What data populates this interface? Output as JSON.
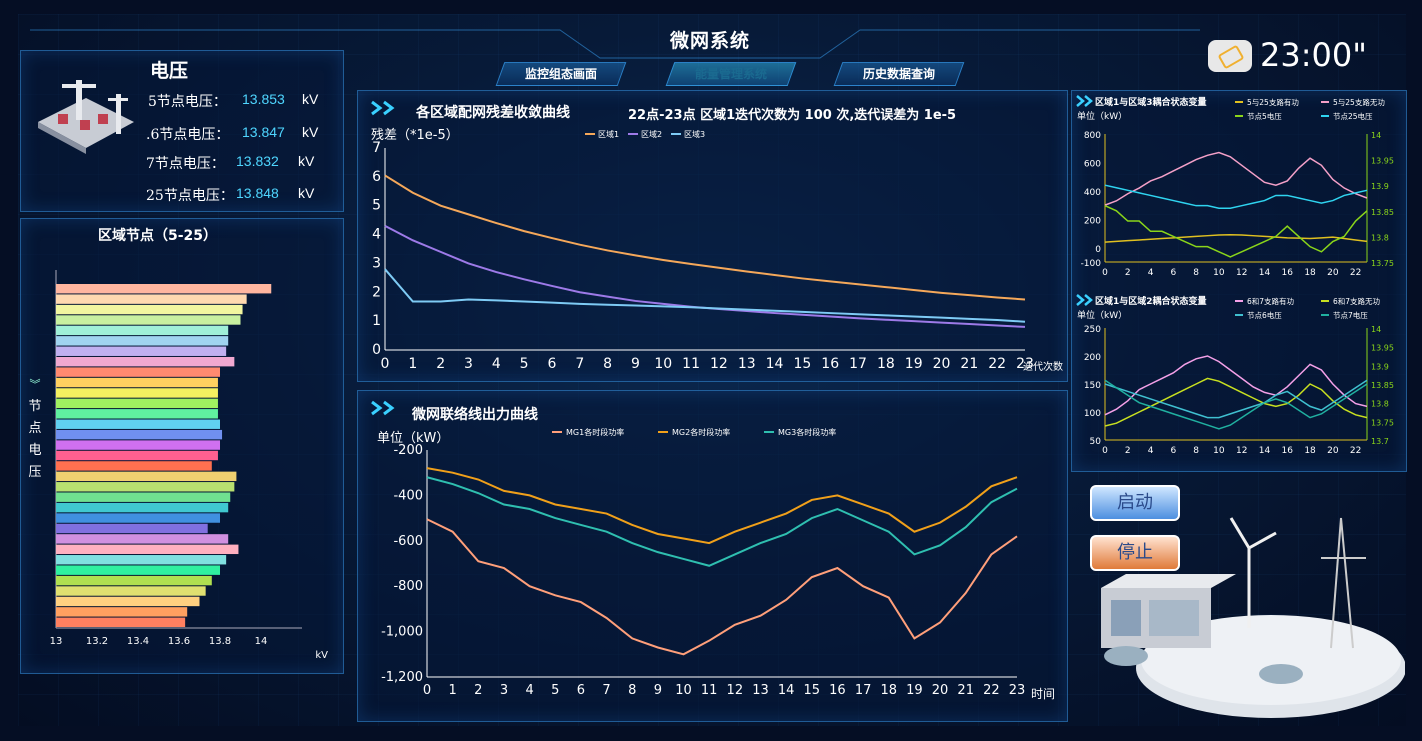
{
  "header": {
    "title": "微网系统",
    "tabs": [
      {
        "label": "监控组态画面",
        "active": false
      },
      {
        "label": "能量管理系统",
        "active": true
      },
      {
        "label": "历史数据查询",
        "active": false
      }
    ],
    "clock": "23:00\""
  },
  "voltage_panel": {
    "title": "电压",
    "rows": [
      {
        "label": "5节点电压：",
        "value": "13.853",
        "unit": "kV"
      },
      {
        "label": ".6节点电压：",
        "value": "13.847",
        "unit": "kV"
      },
      {
        "label": "7节点电压：",
        "value": "13.832",
        "unit": "kV"
      },
      {
        "label": "25节点电压：",
        "value": "13.848",
        "unit": "kV"
      }
    ]
  },
  "node_panel": {
    "title": "区域节点（5-25）",
    "ylabel": "节点电压",
    "chart_data": {
      "type": "bar",
      "orientation": "horizontal",
      "xlim": [
        13,
        14.2
      ],
      "xticks": [
        "13",
        "13.2",
        "13.4",
        "13.6",
        "13.8",
        "14"
      ],
      "xlabel": "kV",
      "values": [
        14.05,
        13.93,
        13.91,
        13.9,
        13.84,
        13.84,
        13.83,
        13.87,
        13.8,
        13.79,
        13.79,
        13.79,
        13.79,
        13.8,
        13.81,
        13.8,
        13.79,
        13.76,
        13.88,
        13.87,
        13.85,
        13.84,
        13.8,
        13.74,
        13.84,
        13.89,
        13.83,
        13.8,
        13.76,
        13.73,
        13.7,
        13.64,
        13.63
      ],
      "colors": [
        "#ffb6a0",
        "#ffd9b0",
        "#f2f6a0",
        "#c8f0a0",
        "#a0f0d8",
        "#a0d4f0",
        "#c0b0f0",
        "#f0a8d0",
        "#ff8a70",
        "#ffd060",
        "#f4f060",
        "#a0f060",
        "#60f0a0",
        "#60d0f0",
        "#7090f0",
        "#d070f0",
        "#ff6090",
        "#ff7050",
        "#f0d070",
        "#b8e070",
        "#70e090",
        "#40c8d0",
        "#4090e0",
        "#8070e0",
        "#d090e0",
        "#ffb0c0",
        "#80e0e0",
        "#30f0a0",
        "#b0e050",
        "#e0e070",
        "#ffd080",
        "#ffa060",
        "#ff8060"
      ]
    }
  },
  "residual_chart": {
    "title": "各区域配网残差收敛曲线",
    "subtitle": "22点-23点 区域1迭代次数为 100 次,迭代误差为 1e-5",
    "chart_data": {
      "type": "line",
      "ylabel": "残差（*1e-5）",
      "xlabel": "迭代次数",
      "x": [
        0,
        1,
        2,
        3,
        4,
        5,
        6,
        7,
        8,
        9,
        10,
        11,
        12,
        13,
        14,
        15,
        16,
        17,
        18,
        19,
        20,
        21,
        22,
        23
      ],
      "ylim": [
        0,
        7
      ],
      "series": [
        {
          "name": "区域1",
          "color": "#f5a85a",
          "values": [
            6.05,
            5.45,
            5.0,
            4.7,
            4.4,
            4.12,
            3.88,
            3.65,
            3.45,
            3.28,
            3.12,
            2.98,
            2.85,
            2.72,
            2.6,
            2.48,
            2.38,
            2.28,
            2.18,
            2.08,
            1.98,
            1.9,
            1.82,
            1.75
          ]
        },
        {
          "name": "区域2",
          "color": "#9d7ae8",
          "values": [
            4.3,
            3.8,
            3.4,
            3.0,
            2.7,
            2.45,
            2.22,
            2.0,
            1.85,
            1.7,
            1.6,
            1.5,
            1.42,
            1.35,
            1.28,
            1.22,
            1.16,
            1.1,
            1.05,
            1.0,
            0.95,
            0.9,
            0.85,
            0.8
          ]
        },
        {
          "name": "区域3",
          "color": "#7ecbf5",
          "values": [
            2.8,
            1.68,
            1.68,
            1.75,
            1.72,
            1.68,
            1.64,
            1.6,
            1.57,
            1.54,
            1.51,
            1.48,
            1.44,
            1.4,
            1.36,
            1.32,
            1.28,
            1.24,
            1.2,
            1.16,
            1.12,
            1.08,
            1.04,
            0.98
          ]
        }
      ]
    }
  },
  "mg_chart": {
    "title": "微网联络线出力曲线",
    "chart_data": {
      "type": "line",
      "ylabel": "单位（kW）",
      "xlabel": "时间",
      "x": [
        0,
        1,
        2,
        3,
        4,
        5,
        6,
        7,
        8,
        9,
        10,
        11,
        12,
        13,
        14,
        15,
        16,
        17,
        18,
        19,
        20,
        21,
        22,
        23
      ],
      "ylim": [
        -1200,
        -200
      ],
      "yticks": [
        "-200",
        "-400",
        "-600",
        "-800",
        "-1,000",
        "-1,200"
      ],
      "series": [
        {
          "name": "MG1各时段功率",
          "color": "#ff9f7a",
          "values": [
            -505,
            -560,
            -690,
            -720,
            -800,
            -840,
            -870,
            -940,
            -1030,
            -1070,
            -1100,
            -1040,
            -970,
            -930,
            -860,
            -760,
            -720,
            -800,
            -850,
            -1030,
            -960,
            -830,
            -660,
            -580
          ]
        },
        {
          "name": "MG2各时段功率",
          "color": "#f0a01a",
          "values": [
            -280,
            -300,
            -330,
            -380,
            -400,
            -440,
            -460,
            -480,
            -530,
            -570,
            -590,
            -610,
            -560,
            -520,
            -480,
            -420,
            -400,
            -440,
            -480,
            -560,
            -520,
            -450,
            -360,
            -320
          ]
        },
        {
          "name": "MG3各时段功率",
          "color": "#2fbfb0",
          "values": [
            -320,
            -350,
            -390,
            -440,
            -460,
            -500,
            -530,
            -560,
            -610,
            -650,
            -680,
            -710,
            -660,
            -610,
            -570,
            -500,
            -460,
            -510,
            -560,
            -660,
            -620,
            -540,
            -430,
            -370
          ]
        }
      ]
    }
  },
  "region13_chart": {
    "title": "区域1与区域3耦合状态变量",
    "chart_data": {
      "type": "line",
      "ylabel": "单位（kW）",
      "x": [
        0,
        1,
        2,
        3,
        4,
        5,
        6,
        7,
        8,
        9,
        10,
        11,
        12,
        13,
        14,
        15,
        16,
        17,
        18,
        19,
        20,
        21,
        22,
        23
      ],
      "xticks": [
        "0",
        "2",
        "4",
        "6",
        "8",
        "10",
        "12",
        "14",
        "16",
        "18",
        "20",
        "22"
      ],
      "ylim": [
        -100,
        800
      ],
      "yticks_left": [
        "800",
        "600",
        "400",
        "200",
        "0",
        "-100"
      ],
      "y2lim": [
        13.75,
        14
      ],
      "yticks_right": [
        "14",
        "13.95",
        "13.9",
        "13.85",
        "13.8",
        "13.75"
      ],
      "series": [
        {
          "name": "5与25支路有功",
          "color": "#e0c020",
          "axis": "left",
          "values": [
            40,
            45,
            50,
            55,
            60,
            65,
            70,
            75,
            80,
            85,
            90,
            92,
            90,
            85,
            80,
            75,
            70,
            68,
            65,
            70,
            75,
            65,
            55,
            45
          ]
        },
        {
          "name": "5与25支路无功",
          "color": "#f4a0c8",
          "axis": "left",
          "values": [
            300,
            330,
            380,
            420,
            470,
            500,
            540,
            580,
            620,
            650,
            670,
            640,
            580,
            520,
            460,
            440,
            470,
            560,
            630,
            580,
            480,
            420,
            380,
            350
          ]
        },
        {
          "name": "节点5电压",
          "color": "#8ad51a",
          "axis": "right",
          "values": [
            13.86,
            13.85,
            13.83,
            13.83,
            13.81,
            13.81,
            13.8,
            13.79,
            13.78,
            13.78,
            13.77,
            13.76,
            13.77,
            13.78,
            13.79,
            13.8,
            13.82,
            13.8,
            13.78,
            13.77,
            13.79,
            13.8,
            13.83,
            13.85
          ]
        },
        {
          "name": "节点25电压",
          "color": "#2fd4f0",
          "axis": "right",
          "values": [
            13.9,
            13.895,
            13.89,
            13.885,
            13.88,
            13.875,
            13.87,
            13.865,
            13.86,
            13.86,
            13.855,
            13.855,
            13.86,
            13.865,
            13.87,
            13.88,
            13.88,
            13.875,
            13.87,
            13.865,
            13.87,
            13.88,
            13.885,
            13.89
          ]
        }
      ]
    }
  },
  "region12_chart": {
    "title": "区域1与区域2耦合状态变量",
    "chart_data": {
      "type": "line",
      "ylabel": "单位（kW）",
      "x": [
        0,
        1,
        2,
        3,
        4,
        5,
        6,
        7,
        8,
        9,
        10,
        11,
        12,
        13,
        14,
        15,
        16,
        17,
        18,
        19,
        20,
        21,
        22,
        23
      ],
      "xticks": [
        "0",
        "2",
        "4",
        "6",
        "8",
        "10",
        "12",
        "14",
        "16",
        "18",
        "20",
        "22"
      ],
      "ylim": [
        50,
        250
      ],
      "yticks_left": [
        "250",
        "200",
        "150",
        "100",
        "50"
      ],
      "y2lim": [
        13.7,
        14
      ],
      "yticks_right": [
        "14",
        "13.95",
        "13.9",
        "13.85",
        "13.8",
        "13.75",
        "13.7"
      ],
      "series": [
        {
          "name": "6和7支路有功",
          "color": "#f4a0e8",
          "axis": "left",
          "values": [
            95,
            105,
            120,
            140,
            150,
            160,
            170,
            185,
            195,
            200,
            190,
            175,
            160,
            145,
            135,
            130,
            145,
            165,
            185,
            175,
            150,
            130,
            115,
            110
          ]
        },
        {
          "name": "6和7支路无功",
          "color": "#c8e020",
          "axis": "left",
          "values": [
            75,
            80,
            90,
            100,
            110,
            120,
            130,
            140,
            150,
            160,
            155,
            145,
            135,
            125,
            115,
            110,
            115,
            130,
            150,
            140,
            120,
            105,
            95,
            90
          ]
        },
        {
          "name": "节点6电压",
          "color": "#40c0d0",
          "axis": "right",
          "values": [
            13.85,
            13.84,
            13.83,
            13.82,
            13.81,
            13.8,
            13.79,
            13.78,
            13.77,
            13.76,
            13.76,
            13.77,
            13.78,
            13.79,
            13.8,
            13.82,
            13.83,
            13.81,
            13.79,
            13.78,
            13.8,
            13.82,
            13.84,
            13.86
          ]
        },
        {
          "name": "节点7电压",
          "color": "#20b0a0",
          "axis": "right",
          "values": [
            13.86,
            13.84,
            13.82,
            13.8,
            13.79,
            13.78,
            13.77,
            13.76,
            13.75,
            13.74,
            13.73,
            13.74,
            13.76,
            13.78,
            13.8,
            13.81,
            13.8,
            13.78,
            13.76,
            13.77,
            13.79,
            13.81,
            13.83,
            13.85
          ]
        }
      ]
    }
  },
  "controls": {
    "start_label": "启动",
    "stop_label": "停止"
  }
}
